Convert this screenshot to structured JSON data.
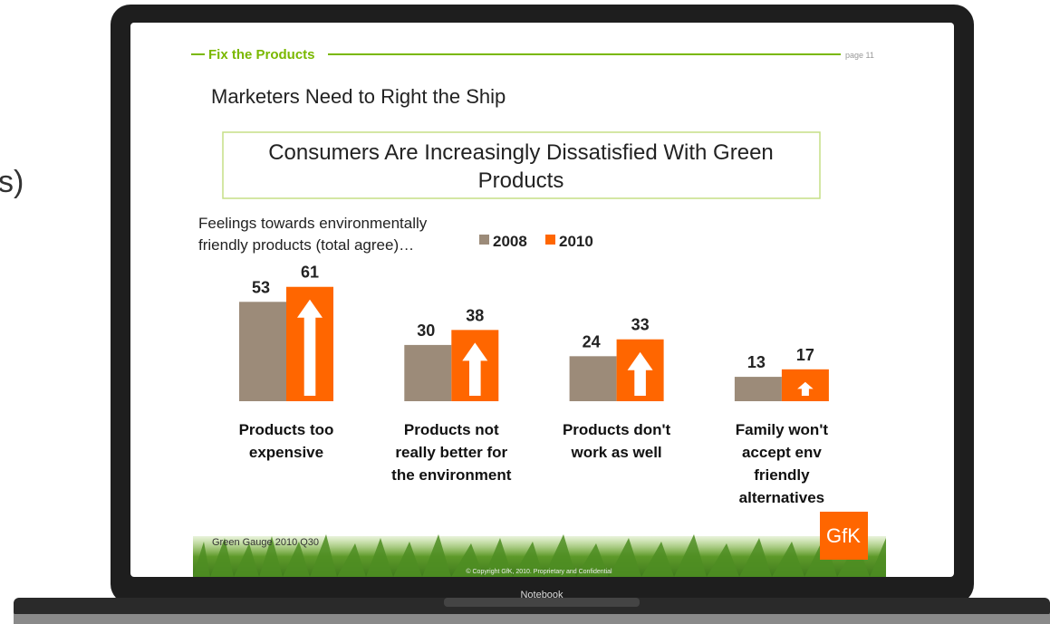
{
  "background_fragment": "s)",
  "slide": {
    "section": "Fix the Products",
    "page": "page 11",
    "heading": "Marketers Need to Right the Ship",
    "source": "Green Gauge 2010 Q30",
    "copyright": "© Copyright GfK, 2010. Proprietary and Confidential",
    "logo": "GfK"
  },
  "device_label": "Notebook",
  "chart_data": {
    "type": "bar",
    "title": "Consumers Are Increasingly Dissatisfied With Green\nProducts",
    "subtitle": "Feelings towards environmentally\nfriendly products (total agree)…",
    "categories": [
      "Products too\nexpensive",
      "Products not\nreally better for\nthe environment",
      "Products don't\nwork as well",
      "Family won't\naccept env\nfriendly\nalternatives"
    ],
    "series": [
      {
        "name": "2008",
        "color": "#9c8b79",
        "values": [
          53,
          30,
          24,
          13
        ]
      },
      {
        "name": "2010",
        "color": "#ff6600",
        "values": [
          61,
          38,
          33,
          17
        ]
      }
    ]
  }
}
